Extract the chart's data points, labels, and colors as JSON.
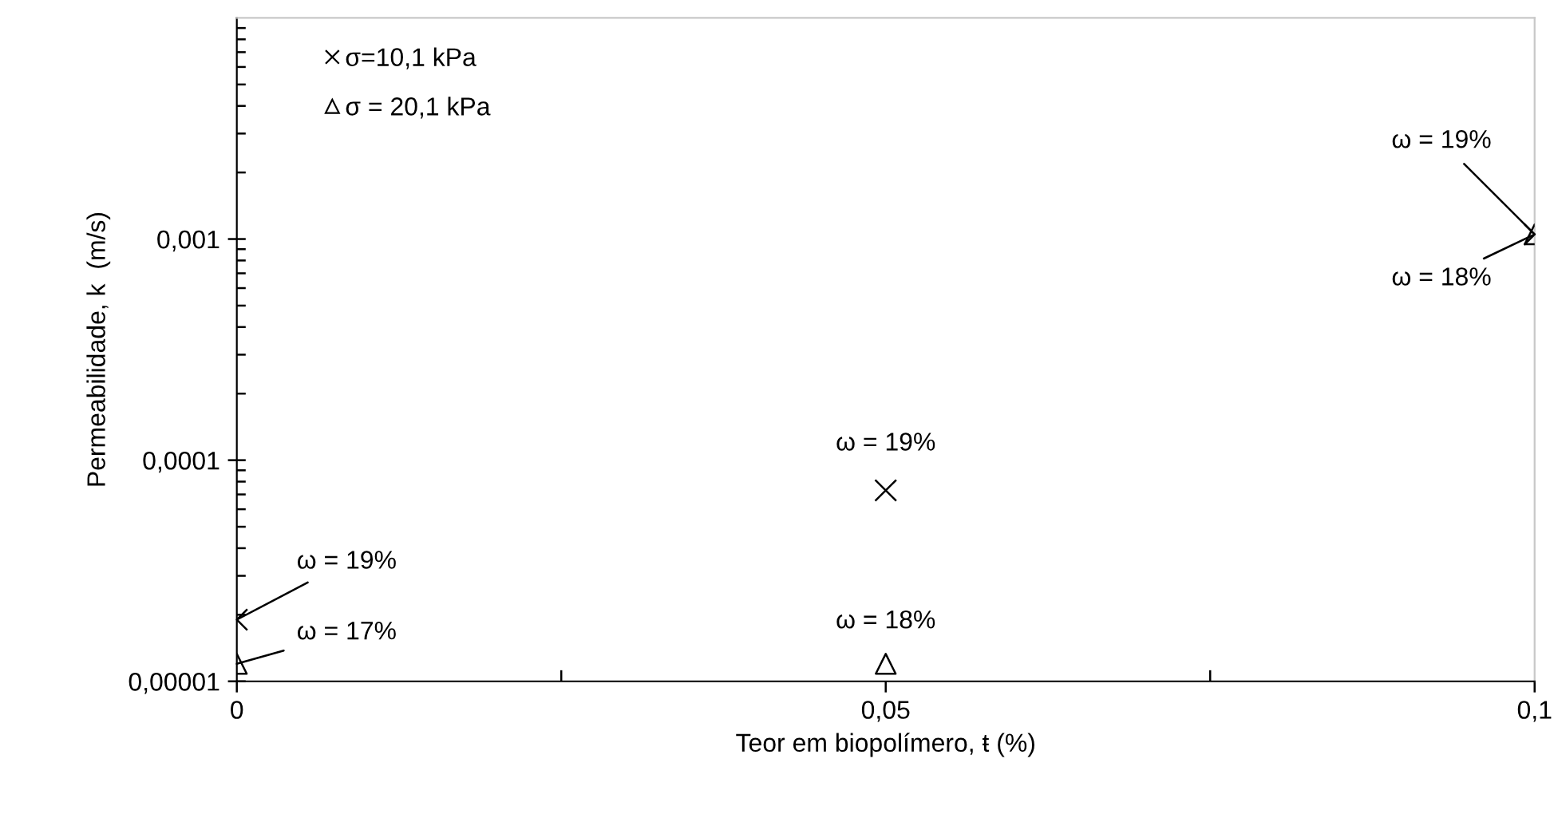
{
  "chart_data": {
    "type": "scatter",
    "xlabel": "Teor em biopolímero, ŧ (%)",
    "ylabel": "Permeabilidade, k  (m/s)",
    "log": "y",
    "xlim": [
      0,
      0.1
    ],
    "ylim": [
      1e-05,
      0.01
    ],
    "xticks": [
      {
        "value": 0,
        "label": "0"
      },
      {
        "value": 0.025,
        "label": null
      },
      {
        "value": 0.05,
        "label": "0,05"
      },
      {
        "value": 0.075,
        "label": null
      },
      {
        "value": 0.1,
        "label": "0,1"
      }
    ],
    "yticks": [
      {
        "value": 1e-05,
        "label": "0,00001"
      },
      {
        "value": 2e-05,
        "label": null
      },
      {
        "value": 3e-05,
        "label": null
      },
      {
        "value": 4e-05,
        "label": null
      },
      {
        "value": 5e-05,
        "label": null
      },
      {
        "value": 6e-05,
        "label": null
      },
      {
        "value": 7e-05,
        "label": null
      },
      {
        "value": 8e-05,
        "label": null
      },
      {
        "value": 9e-05,
        "label": null
      },
      {
        "value": 0.0001,
        "label": "0,0001"
      },
      {
        "value": 0.0002,
        "label": null
      },
      {
        "value": 0.0003,
        "label": null
      },
      {
        "value": 0.0004,
        "label": null
      },
      {
        "value": 0.0005,
        "label": null
      },
      {
        "value": 0.0006,
        "label": null
      },
      {
        "value": 0.0007,
        "label": null
      },
      {
        "value": 0.0008,
        "label": null
      },
      {
        "value": 0.0009,
        "label": null
      },
      {
        "value": 0.001,
        "label": "0,001"
      },
      {
        "value": 0.002,
        "label": null
      },
      {
        "value": 0.003,
        "label": null
      },
      {
        "value": 0.004,
        "label": null
      },
      {
        "value": 0.005,
        "label": null
      },
      {
        "value": 0.006,
        "label": null
      },
      {
        "value": 0.007,
        "label": null
      },
      {
        "value": 0.008,
        "label": null
      },
      {
        "value": 0.009,
        "label": null
      }
    ],
    "grid": false,
    "legend": "top left",
    "series": [
      {
        "name": "σ=10,1 kPa",
        "color": "#000000",
        "marker": "cross",
        "x": [
          0,
          0.05,
          0.1
        ],
        "values": [
          1.9e-05,
          7.3e-05,
          0.00105
        ]
      },
      {
        "name": "σ = 20,1 kPa",
        "color": "#000000",
        "marker": "triangle",
        "x": [
          0,
          0.05,
          0.1
        ],
        "values": [
          1.2e-05,
          1.2e-05,
          0.00105
        ]
      }
    ],
    "annotations": [
      {
        "text": "ω = 19%",
        "x": 0,
        "y": 1.9e-05
      },
      {
        "text": "ω = 17%",
        "x": 0,
        "y": 1.2e-05
      },
      {
        "text": "ω = 19%",
        "x": 0.05,
        "y": 7.3e-05
      },
      {
        "text": "ω = 18%",
        "x": 0.05,
        "y": 1.2e-05
      },
      {
        "text": "ω = 19%",
        "x": 0.1,
        "y": 0.00105
      },
      {
        "text": "ω = 18%",
        "x": 0.1,
        "y": 0.00105
      }
    ]
  }
}
